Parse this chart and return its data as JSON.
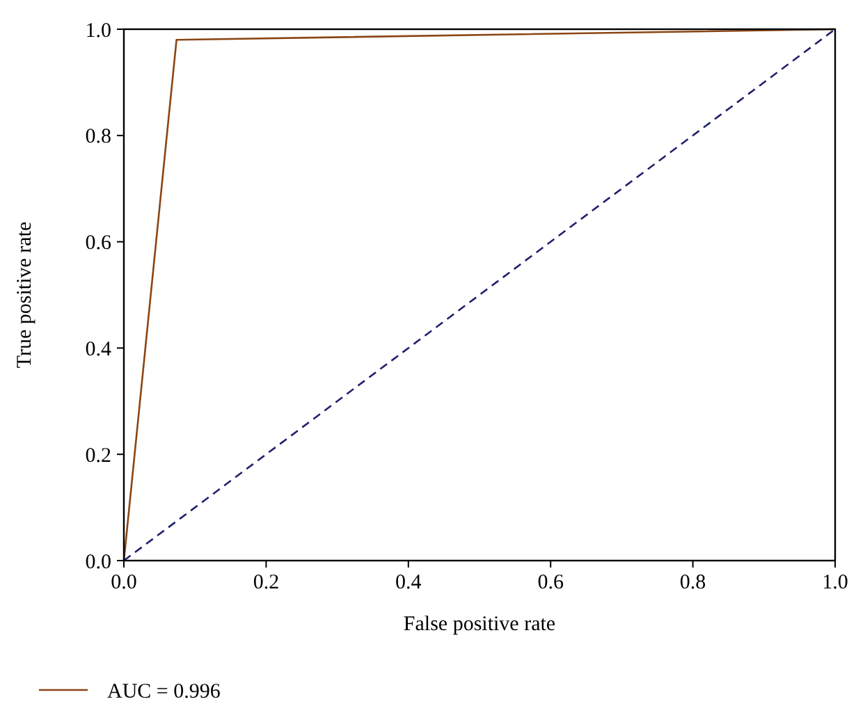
{
  "chart_data": {
    "type": "line",
    "xlabel": "False positive rate",
    "ylabel": "True positive rate",
    "xlim": [
      0,
      1
    ],
    "ylim": [
      0,
      1
    ],
    "xticks": [
      {
        "value": 0,
        "label": "0.0"
      },
      {
        "value": 0.2,
        "label": "0.2"
      },
      {
        "value": 0.4,
        "label": "0.4"
      },
      {
        "value": 0.6,
        "label": "0.6"
      },
      {
        "value": 0.8,
        "label": "0.8"
      },
      {
        "value": 1,
        "label": "1.0"
      }
    ],
    "yticks": [
      {
        "value": 0,
        "label": "0.0"
      },
      {
        "value": 0.2,
        "label": "0.2"
      },
      {
        "value": 0.4,
        "label": "0.4"
      },
      {
        "value": 0.6,
        "label": "0.6"
      },
      {
        "value": 0.8,
        "label": "0.8"
      },
      {
        "value": 1,
        "label": "1.0"
      }
    ],
    "series": [
      {
        "name": "AUC = 0.996",
        "color": "#8b4513",
        "x": [
          0,
          0.074,
          1
        ],
        "values": [
          0,
          0.98,
          1
        ]
      },
      {
        "color": "#1f1f6e",
        "x": [
          0,
          1
        ],
        "values": [
          0,
          1
        ],
        "line_style": "dashed"
      }
    ],
    "legend": "bottom",
    "grid": false,
    "marker": "none"
  }
}
